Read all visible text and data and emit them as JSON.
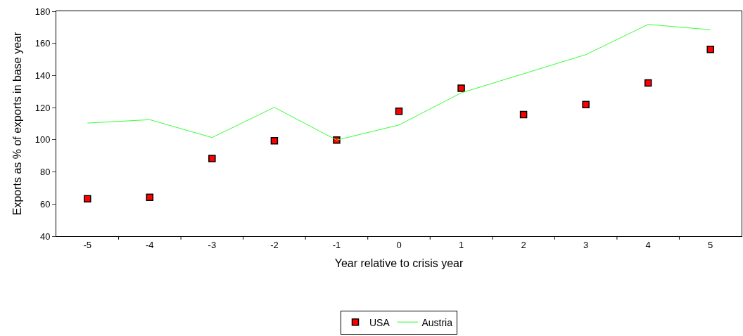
{
  "chart_data": {
    "type": "line",
    "xlabel": "Year relative to crisis year",
    "ylabel": "Exports as % of exports in base year",
    "categories": [
      "-5",
      "-4",
      "-3",
      "-2",
      "-1",
      "0",
      "1",
      "2",
      "3",
      "4",
      "5"
    ],
    "series": [
      {
        "name": "USA",
        "type": "scatter",
        "marker": "square",
        "color": "#ff0000",
        "values": [
          63.3,
          64.2,
          88.3,
          99.4,
          99.8,
          117.8,
          132.1,
          115.7,
          121.9,
          135.4,
          156.3
        ]
      },
      {
        "name": "Austria",
        "marker": "none",
        "line_style": "solid",
        "color": "#33ff33",
        "values": [
          110.4,
          112.5,
          101.4,
          120.2,
          99.8,
          109.2,
          129.2,
          141.1,
          153,
          171.8,
          168.5
        ]
      }
    ],
    "ylim": [
      40,
      180
    ],
    "yticks": [
      40,
      60,
      80,
      100,
      120,
      140,
      160,
      180
    ],
    "grid": false,
    "legend": "bottom"
  }
}
